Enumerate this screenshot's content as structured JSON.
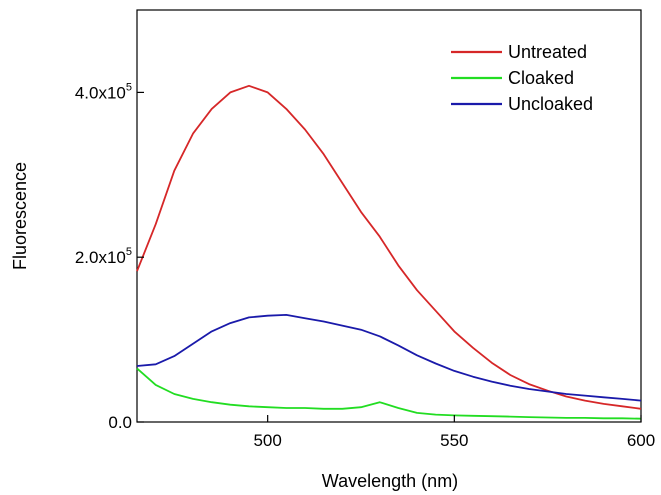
{
  "chart_data": {
    "type": "line",
    "xlabel": "Wavelength (nm)",
    "ylabel": "Fluorescence",
    "xlim": [
      465,
      600
    ],
    "ylim": [
      0,
      500000
    ],
    "grid": false,
    "legend_position": "top-right",
    "x_ticks": [
      {
        "value": 500,
        "label": "500"
      },
      {
        "value": 550,
        "label": "550"
      },
      {
        "value": 600,
        "label": "600"
      }
    ],
    "y_ticks": [
      {
        "value": 0,
        "mantissa": "0.0",
        "exponent": ""
      },
      {
        "value": 200000,
        "mantissa": "2.0x10",
        "exponent": "5"
      },
      {
        "value": 400000,
        "mantissa": "4.0x10",
        "exponent": "5"
      }
    ],
    "x": [
      465,
      470,
      475,
      480,
      485,
      490,
      495,
      500,
      505,
      510,
      515,
      520,
      525,
      530,
      535,
      540,
      545,
      550,
      555,
      560,
      565,
      570,
      575,
      580,
      585,
      590,
      595,
      600
    ],
    "series": [
      {
        "name": "Untreated",
        "color": "#d62728",
        "values": [
          183000,
          240000,
          305000,
          350000,
          380000,
          400000,
          408000,
          400000,
          380000,
          355000,
          325000,
          290000,
          255000,
          225000,
          190000,
          160000,
          135000,
          110000,
          90000,
          72000,
          57000,
          46000,
          38000,
          31000,
          26000,
          22000,
          19000,
          16000
        ]
      },
      {
        "name": "Cloaked",
        "color": "#22dd22",
        "values": [
          65000,
          45000,
          34000,
          28000,
          24000,
          21000,
          19000,
          18000,
          17000,
          17000,
          16000,
          16000,
          18000,
          24000,
          17000,
          11000,
          9000,
          8000,
          7500,
          7000,
          6500,
          6000,
          5500,
          5000,
          5000,
          4500,
          4500,
          4000
        ]
      },
      {
        "name": "Uncloaked",
        "color": "#1a1aaa",
        "values": [
          68000,
          70000,
          80000,
          95000,
          110000,
          120000,
          127000,
          129000,
          130000,
          126000,
          122000,
          117000,
          112000,
          104000,
          93000,
          81000,
          71000,
          62000,
          55000,
          49000,
          44000,
          40000,
          37000,
          34000,
          32000,
          30000,
          28000,
          26000
        ]
      }
    ]
  }
}
